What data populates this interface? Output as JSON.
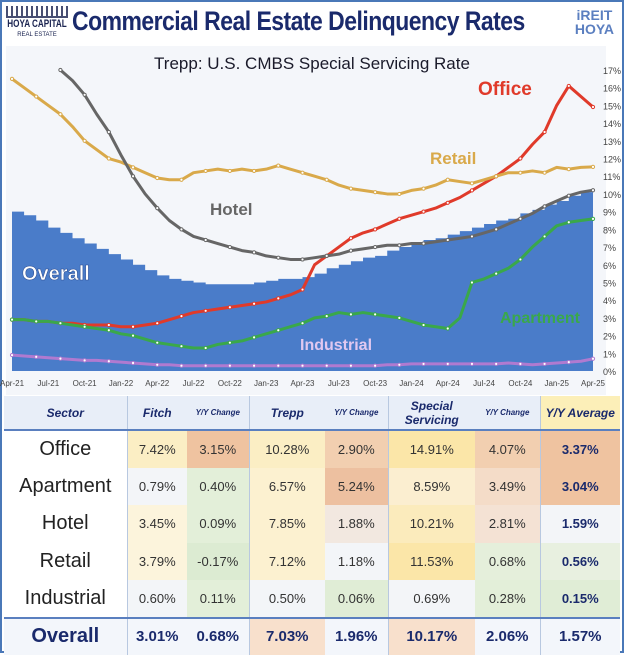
{
  "header": {
    "logo_left": "HOYA CAPITAL",
    "logo_left_sub": "REAL ESTATE",
    "title": "Commercial Real Estate Delinquency Rates",
    "logo_right_1": "iREIT",
    "logo_right_2": "HOYA",
    "subtitle": "Trepp: U.S. CMBS Special Servicing Rate"
  },
  "chart_data": {
    "type": "line",
    "title": "Trepp: U.S. CMBS Special Servicing Rate",
    "x_ticks": [
      "Apr-21",
      "Jul-21",
      "Oct-21",
      "Jan-22",
      "Apr-22",
      "Jul-22",
      "Oct-22",
      "Jan-23",
      "Apr-23",
      "Jul-23",
      "Oct-23",
      "Jan-24",
      "Apr-24",
      "Jul-24",
      "Oct-24",
      "Jan-25",
      "Apr-25"
    ],
    "x_range": [
      "Apr-21",
      "Apr-25"
    ],
    "x_step": "monthly",
    "y_ticks": [
      "0%",
      "1%",
      "2%",
      "3%",
      "4%",
      "5%",
      "6%",
      "7%",
      "8%",
      "9%",
      "10%",
      "11%",
      "12%",
      "13%",
      "14%",
      "15%",
      "16%",
      "17%"
    ],
    "ylim": [
      0,
      17
    ],
    "y_axis": "right",
    "grid": false,
    "series": [
      {
        "name": "Overall",
        "kind": "area",
        "color": "#4a7cc9",
        "label_color": "#ffffff",
        "values": [
          9.0,
          8.8,
          8.5,
          8.1,
          7.8,
          7.5,
          7.2,
          6.9,
          6.6,
          6.3,
          6.0,
          5.7,
          5.4,
          5.2,
          5.1,
          5.0,
          4.9,
          4.9,
          4.9,
          4.9,
          5.0,
          5.1,
          5.2,
          5.2,
          5.3,
          5.5,
          5.8,
          6.0,
          6.2,
          6.4,
          6.5,
          6.8,
          7.0,
          7.2,
          7.4,
          7.5,
          7.7,
          7.9,
          8.1,
          8.3,
          8.5,
          8.6,
          8.9,
          9.1,
          9.4,
          9.6,
          9.9,
          10.1,
          10.17
        ]
      },
      {
        "name": "Office",
        "color": "#e03a2a",
        "values": [
          2.9,
          2.9,
          2.8,
          2.8,
          2.7,
          2.7,
          2.6,
          2.6,
          2.6,
          2.5,
          2.5,
          2.6,
          2.7,
          2.9,
          3.1,
          3.3,
          3.4,
          3.5,
          3.6,
          3.7,
          3.8,
          3.9,
          4.1,
          4.3,
          4.6,
          6.0,
          6.5,
          7.0,
          7.5,
          7.8,
          8.0,
          8.3,
          8.6,
          8.8,
          9.0,
          9.2,
          9.5,
          9.8,
          10.2,
          10.6,
          11.0,
          11.5,
          12.0,
          12.8,
          13.5,
          15.0,
          16.1,
          15.5,
          14.91
        ]
      },
      {
        "name": "Retail",
        "color": "#d9a94a",
        "values": [
          16.5,
          16.0,
          15.5,
          15.0,
          14.5,
          13.8,
          13.0,
          12.5,
          12.0,
          11.8,
          11.5,
          11.2,
          10.9,
          10.8,
          10.8,
          11.2,
          11.3,
          11.4,
          11.3,
          11.4,
          11.3,
          11.4,
          11.6,
          11.4,
          11.2,
          11.0,
          10.8,
          10.5,
          10.3,
          10.2,
          10.1,
          10.0,
          10.0,
          10.2,
          10.3,
          10.5,
          10.8,
          10.7,
          10.6,
          10.8,
          11.0,
          11.2,
          11.2,
          11.3,
          11.2,
          11.5,
          11.4,
          11.5,
          11.53
        ]
      },
      {
        "name": "Hotel",
        "color": "#666666",
        "values": [
          null,
          null,
          null,
          null,
          17.0,
          16.4,
          15.6,
          14.5,
          13.5,
          12.2,
          11.0,
          10.0,
          9.2,
          8.5,
          8.0,
          7.6,
          7.4,
          7.2,
          7.0,
          6.8,
          6.7,
          6.5,
          6.4,
          6.3,
          6.3,
          6.4,
          6.5,
          6.6,
          6.8,
          6.9,
          7.0,
          7.1,
          7.1,
          7.2,
          7.2,
          7.3,
          7.4,
          7.5,
          7.6,
          7.8,
          8.0,
          8.3,
          8.6,
          8.9,
          9.3,
          9.6,
          9.9,
          10.1,
          10.21
        ]
      },
      {
        "name": "Apartment",
        "color": "#3aa84a",
        "values": [
          2.9,
          2.9,
          2.8,
          2.8,
          2.7,
          2.6,
          2.5,
          2.4,
          2.3,
          2.1,
          2.0,
          1.8,
          1.6,
          1.5,
          1.4,
          1.3,
          1.3,
          1.5,
          1.6,
          1.7,
          1.9,
          2.1,
          2.3,
          2.5,
          2.7,
          3.0,
          3.1,
          3.3,
          3.2,
          3.3,
          3.2,
          3.1,
          3.0,
          2.8,
          2.6,
          2.5,
          2.4,
          3.0,
          5.0,
          5.2,
          5.5,
          5.8,
          6.3,
          7.0,
          7.6,
          8.2,
          8.4,
          8.5,
          8.59
        ]
      },
      {
        "name": "Industrial",
        "color": "#b07ad0",
        "values": [
          0.9,
          0.85,
          0.8,
          0.75,
          0.7,
          0.65,
          0.6,
          0.6,
          0.55,
          0.5,
          0.45,
          0.4,
          0.35,
          0.35,
          0.3,
          0.3,
          0.3,
          0.3,
          0.3,
          0.3,
          0.3,
          0.3,
          0.3,
          0.3,
          0.3,
          0.3,
          0.3,
          0.3,
          0.3,
          0.3,
          0.3,
          0.35,
          0.35,
          0.4,
          0.4,
          0.4,
          0.4,
          0.4,
          0.4,
          0.4,
          0.4,
          0.45,
          0.4,
          0.35,
          0.4,
          0.45,
          0.5,
          0.55,
          0.69
        ]
      }
    ]
  },
  "table": {
    "headers": [
      "Sector",
      "Fitch",
      "Y/Y Change",
      "Trepp",
      "Y/Y Change",
      "Special Servicing",
      "Y/Y Change",
      "Y/Y Average"
    ],
    "rows": [
      {
        "sector": "Office",
        "cells": [
          "7.42%",
          "3.15%",
          "10.28%",
          "2.90%",
          "14.91%",
          "4.07%",
          "3.37%"
        ],
        "colors": [
          "#fbeec4",
          "#efc3a0",
          "#fbeec4",
          "#f2cfb0",
          "#fbe6a8",
          "#f2cfb0",
          "#efc3a0"
        ]
      },
      {
        "sector": "Apartment",
        "cells": [
          "0.79%",
          "0.40%",
          "6.57%",
          "5.24%",
          "8.59%",
          "3.49%",
          "3.04%"
        ],
        "colors": [
          "#f3f5f8",
          "#e3efd9",
          "#fcf1d0",
          "#edc0a0",
          "#fbeed0",
          "#f4dcc8",
          "#efc3a0"
        ]
      },
      {
        "sector": "Hotel",
        "cells": [
          "3.45%",
          "0.09%",
          "7.85%",
          "1.88%",
          "10.21%",
          "2.81%",
          "1.59%"
        ],
        "colors": [
          "#fcf4dc",
          "#e3efd9",
          "#fcf1d0",
          "#f2e8e0",
          "#fbebbc",
          "#f4e2d4",
          "#f3f5f8"
        ]
      },
      {
        "sector": "Retail",
        "cells": [
          "3.79%",
          "-0.17%",
          "7.12%",
          "1.18%",
          "11.53%",
          "0.68%",
          "0.56%"
        ],
        "colors": [
          "#fcf4dc",
          "#dcebd2",
          "#fcf1d0",
          "#f3f5f8",
          "#fbe6a8",
          "#e5efdb",
          "#e8f0e0"
        ]
      },
      {
        "sector": "Industrial",
        "cells": [
          "0.60%",
          "0.11%",
          "0.50%",
          "0.06%",
          "0.69%",
          "0.28%",
          "0.15%"
        ],
        "colors": [
          "#f3f5f8",
          "#e3efd9",
          "#f3f5f8",
          "#e0edd6",
          "#f3f5f8",
          "#e3efd9",
          "#e0edd6"
        ]
      }
    ],
    "overall": {
      "sector": "Overall",
      "cells": [
        "3.01%",
        "0.68%",
        "7.03%",
        "1.96%",
        "10.17%",
        "2.06%",
        "1.57%"
      ],
      "colors": [
        "#f3f6fb",
        "#f3f6fb",
        "#f8e0cc",
        "#f3f6fb",
        "#f8e0cc",
        "#f3f6fb",
        "#f3f6fb"
      ]
    }
  }
}
